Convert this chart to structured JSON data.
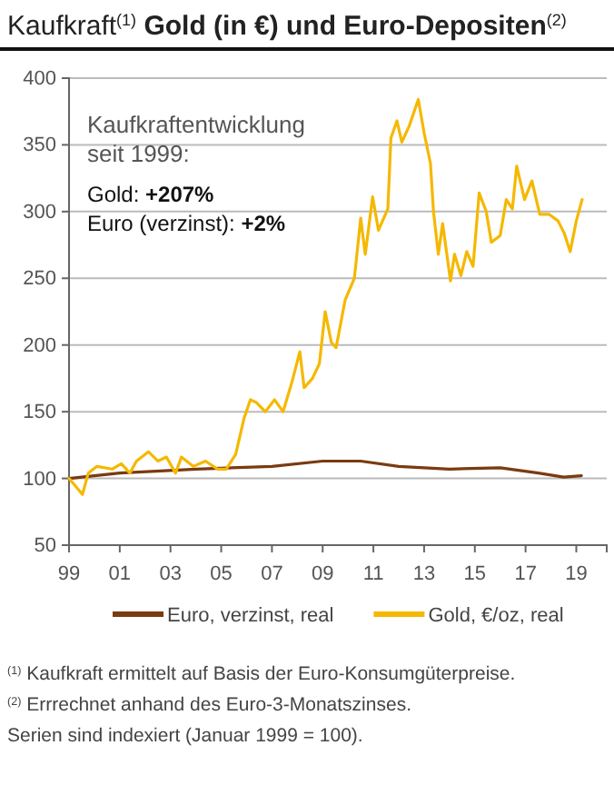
{
  "chart_data": {
    "type": "line",
    "title": "Kaufkraft$^{(1)}$ Gold (in €) und Euro-Depositen$^{(2)}$",
    "annotations": [
      "Kaufkraftentwicklung",
      "seit 1999:",
      "Gold: +207%",
      "Euro (verzinst):  +2%",
      "$^{(1)}$ Kaufkraft ermittelt auf Basis der Euro-Konsumgüterpreise.",
      "$^{(2)}$ Errrechnet anhand des Euro-3-Monatszinses.",
      "Serien sind indexiert (Januar 1999 = 100)."
    ],
    "xlim": [
      1999,
      2020.2
    ],
    "xticks": [
      {
        "value": 1999,
        "label": "99"
      },
      {
        "value": 2001,
        "label": "01"
      },
      {
        "value": 2003,
        "label": "03"
      },
      {
        "value": 2005,
        "label": "05"
      },
      {
        "value": 2007,
        "label": "07"
      },
      {
        "value": 2009,
        "label": "09"
      },
      {
        "value": 2011,
        "label": "11"
      },
      {
        "value": 2013,
        "label": "13"
      },
      {
        "value": 2015,
        "label": "15"
      },
      {
        "value": 2017,
        "label": "17"
      },
      {
        "value": 2019,
        "label": "19"
      }
    ],
    "ylim": [
      50,
      400
    ],
    "yticks": [
      50,
      100,
      150,
      200,
      250,
      300,
      350,
      400
    ],
    "grid": "y",
    "legend": "bottom",
    "line_style": "solid",
    "series": [
      {
        "name": "Euro, verzinst, real",
        "color": "#7a3b10",
        "x": [
          1999,
          2001,
          2004,
          2007,
          2009,
          2009.5,
          2010.5,
          2012,
          2014,
          2016,
          2017.5,
          2018.5,
          2019.2
        ],
        "values": [
          100,
          104,
          107,
          109,
          113,
          113,
          113,
          109,
          107,
          108,
          104,
          101,
          102
        ]
      },
      {
        "name": "Gold, €/oz, real",
        "color": "#f5b800",
        "x": [
          1999,
          1999.53,
          1999.76,
          2000.1,
          2000.7,
          2001.06,
          2001.4,
          2001.66,
          2002.13,
          2002.5,
          2002.84,
          2003.2,
          2003.43,
          2003.9,
          2004.38,
          2004.85,
          2005.2,
          2005.57,
          2005.9,
          2006.15,
          2006.38,
          2006.74,
          2007.1,
          2007.44,
          2007.8,
          2008.1,
          2008.27,
          2008.6,
          2008.87,
          2009.1,
          2009.34,
          2009.53,
          2009.89,
          2010.25,
          2010.5,
          2010.68,
          2010.97,
          2011.2,
          2011.57,
          2011.69,
          2011.93,
          2012.12,
          2012.41,
          2012.77,
          2013.0,
          2013.25,
          2013.37,
          2013.56,
          2013.73,
          2014.04,
          2014.2,
          2014.45,
          2014.68,
          2014.93,
          2015.17,
          2015.45,
          2015.65,
          2016.0,
          2016.24,
          2016.48,
          2016.65,
          2016.96,
          2017.25,
          2017.56,
          2017.92,
          2018.28,
          2018.52,
          2018.76,
          2019.0,
          2019.23
        ],
        "values": [
          100,
          88,
          104,
          109,
          107,
          111,
          104,
          113,
          120,
          113,
          116,
          104,
          116,
          109,
          113,
          107,
          107,
          118,
          145,
          159,
          157,
          150,
          159,
          150,
          173,
          195,
          168,
          175,
          186,
          225,
          202,
          198,
          234,
          250,
          295,
          268,
          311,
          286,
          302,
          355,
          368,
          352,
          364,
          384,
          359,
          336,
          300,
          268,
          291,
          248,
          268,
          252,
          270,
          259,
          314,
          300,
          277,
          282,
          309,
          302,
          334,
          309,
          323,
          298,
          298,
          293,
          284,
          270,
          293,
          309
        ]
      }
    ]
  }
}
